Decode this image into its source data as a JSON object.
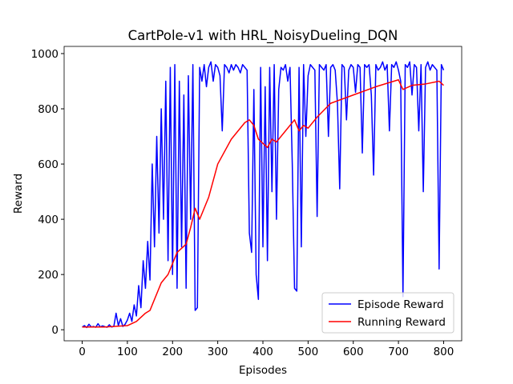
{
  "chart_data": {
    "type": "line",
    "title": "CartPole-v1 with HRL_NoisyDueling_DQN",
    "x_label": "Episodes",
    "y_label": "Reward",
    "xlim": [
      -40,
      840
    ],
    "ylim": [
      -40,
      1026
    ],
    "xticks": [
      0,
      100,
      200,
      300,
      400,
      500,
      600,
      700,
      800
    ],
    "yticks": [
      0,
      200,
      400,
      600,
      800,
      1000
    ],
    "legend": "lower right",
    "series": [
      {
        "name": "Episode Reward",
        "color": "#0000ff",
        "x": [
          0,
          5,
          10,
          15,
          20,
          25,
          30,
          35,
          40,
          45,
          50,
          55,
          60,
          65,
          70,
          75,
          80,
          85,
          90,
          95,
          100,
          105,
          110,
          115,
          120,
          125,
          130,
          135,
          140,
          145,
          150,
          155,
          160,
          165,
          170,
          175,
          180,
          185,
          190,
          195,
          200,
          205,
          210,
          215,
          220,
          225,
          230,
          235,
          240,
          245,
          250,
          255,
          260,
          265,
          270,
          275,
          280,
          285,
          290,
          295,
          300,
          305,
          310,
          315,
          320,
          325,
          330,
          335,
          340,
          345,
          350,
          355,
          360,
          365,
          370,
          375,
          380,
          385,
          390,
          395,
          400,
          405,
          410,
          415,
          420,
          425,
          430,
          435,
          440,
          445,
          450,
          455,
          460,
          465,
          470,
          475,
          480,
          485,
          490,
          495,
          500,
          505,
          510,
          515,
          520,
          525,
          530,
          535,
          540,
          545,
          550,
          555,
          560,
          565,
          570,
          575,
          580,
          585,
          590,
          595,
          600,
          605,
          610,
          615,
          620,
          625,
          630,
          635,
          640,
          645,
          650,
          655,
          660,
          665,
          670,
          675,
          680,
          685,
          690,
          695,
          700,
          705,
          710,
          715,
          720,
          725,
          730,
          735,
          740,
          745,
          750,
          755,
          760,
          765,
          770,
          775,
          780,
          785,
          790,
          795,
          800
        ],
        "values": [
          10,
          15,
          8,
          20,
          10,
          12,
          9,
          22,
          10,
          14,
          11,
          9,
          18,
          10,
          12,
          60,
          15,
          40,
          12,
          20,
          35,
          60,
          30,
          90,
          50,
          160,
          80,
          250,
          150,
          320,
          180,
          600,
          300,
          700,
          350,
          800,
          400,
          900,
          250,
          950,
          200,
          960,
          150,
          900,
          300,
          850,
          150,
          920,
          400,
          960,
          70,
          80,
          950,
          900,
          960,
          880,
          950,
          970,
          900,
          960,
          950,
          920,
          720,
          960,
          950,
          930,
          960,
          940,
          960,
          950,
          930,
          960,
          950,
          940,
          350,
          280,
          870,
          200,
          110,
          950,
          300,
          880,
          250,
          950,
          500,
          960,
          400,
          870,
          950,
          940,
          960,
          900,
          950,
          600,
          150,
          140,
          950,
          300,
          960,
          700,
          920,
          960,
          950,
          940,
          410,
          960,
          950,
          940,
          960,
          700,
          950,
          960,
          940,
          820,
          510,
          960,
          950,
          760,
          940,
          960,
          950,
          860,
          960,
          950,
          640,
          960,
          950,
          960,
          850,
          560,
          960,
          940,
          950,
          970,
          940,
          960,
          720,
          960,
          950,
          970,
          940,
          900,
          120,
          960,
          950,
          970,
          850,
          960,
          950,
          720,
          960,
          500,
          950,
          970,
          940,
          960,
          950,
          940,
          220,
          960,
          940
        ]
      },
      {
        "name": "Running Reward",
        "color": "#ff0000",
        "x": [
          0,
          50,
          100,
          120,
          140,
          150,
          175,
          190,
          210,
          230,
          240,
          250,
          260,
          280,
          300,
          330,
          360,
          370,
          380,
          390,
          410,
          420,
          430,
          450,
          470,
          480,
          490,
          500,
          520,
          550,
          600,
          650,
          700,
          710,
          730,
          760,
          790,
          800
        ],
        "values": [
          10,
          10,
          15,
          30,
          60,
          70,
          170,
          200,
          280,
          310,
          370,
          440,
          400,
          480,
          600,
          690,
          750,
          760,
          740,
          690,
          660,
          690,
          680,
          720,
          760,
          720,
          740,
          730,
          770,
          820,
          850,
          880,
          905,
          870,
          885,
          890,
          900,
          885
        ]
      }
    ]
  }
}
